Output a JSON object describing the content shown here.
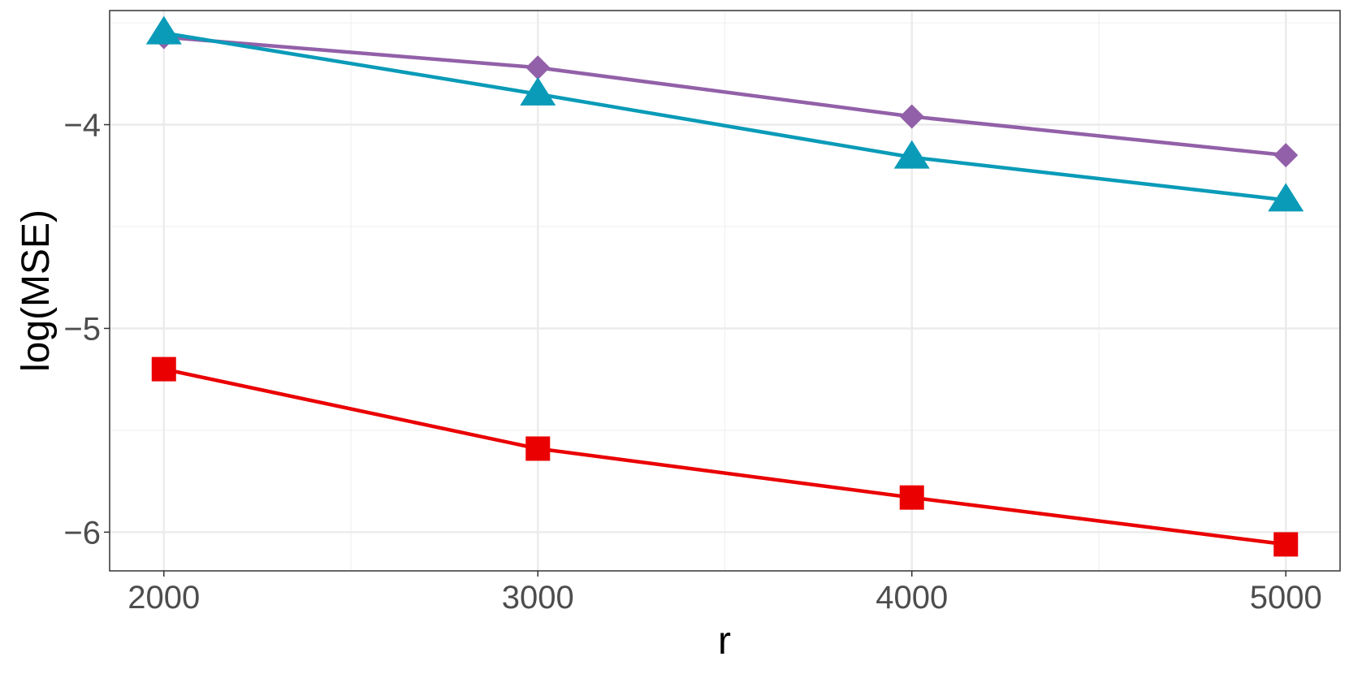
{
  "chart_data": {
    "type": "line",
    "title": "",
    "xlabel": "r",
    "ylabel": "log(MSE)",
    "x": [
      2000,
      3000,
      4000,
      5000
    ],
    "xlim": [
      1855,
      5145
    ],
    "ylim": [
      -6.19,
      -3.44
    ],
    "x_ticks": [
      2000,
      3000,
      4000,
      5000
    ],
    "x_tick_labels": [
      "2000",
      "3000",
      "4000",
      "5000"
    ],
    "y_ticks": [
      -6,
      -5,
      -4
    ],
    "y_tick_labels": [
      "−6",
      "−5",
      "−4"
    ],
    "grid": true,
    "legend": "none",
    "series": [
      {
        "marker": "diamond",
        "color": "#9260a8",
        "values": [
          -3.57,
          -3.72,
          -3.96,
          -4.15
        ]
      },
      {
        "marker": "triangle",
        "color": "#0a9bb8",
        "values": [
          -3.55,
          -3.85,
          -4.16,
          -4.37
        ]
      },
      {
        "marker": "square",
        "color": "#ea0000",
        "values": [
          -5.2,
          -5.59,
          -5.83,
          -6.06
        ]
      }
    ]
  }
}
